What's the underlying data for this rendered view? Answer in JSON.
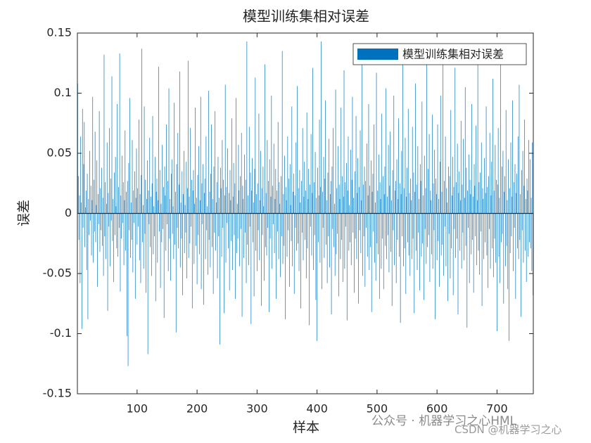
{
  "chart_data": {
    "type": "bar",
    "title": "模型训练集相对误差",
    "xlabel": "样本",
    "ylabel": "误差",
    "xlim": [
      0.5,
      760.5
    ],
    "xticks": [
      100,
      200,
      300,
      400,
      500,
      600,
      700
    ],
    "ylim": [
      -0.15,
      0.15
    ],
    "yticks": [
      -0.15,
      -0.1,
      -0.05,
      0,
      0.05,
      0.1,
      0.15
    ],
    "grid": false,
    "legend": "northeast",
    "series": [
      {
        "name": "模型训练集相对误差",
        "color": "#0072bd",
        "values": [
          0.108,
          0.031,
          -0.022,
          0.015,
          -0.058,
          0.064,
          0.009,
          -0.096,
          0.087,
          -0.012,
          0.041,
          0.076,
          -0.028,
          0.005,
          0.019,
          -0.047,
          0.033,
          -0.088,
          0.012,
          -0.018,
          0.052,
          -0.006,
          0.023,
          -0.035,
          0.011,
          0.097,
          -0.041,
          0.028,
          -0.015,
          0.068,
          -0.024,
          0.007,
          0.044,
          -0.061,
          0.016,
          -0.009,
          0.085,
          -0.032,
          0.021,
          -0.014,
          0.038,
          -0.027,
          0.013,
          -0.052,
          0.132,
          -0.019,
          0.026,
          -0.038,
          0.008,
          0.059,
          -0.081,
          0.017,
          -0.011,
          0.071,
          -0.044,
          0.029,
          -0.006,
          0.114,
          -0.023,
          0.012,
          -0.057,
          0.034,
          -0.018,
          0.047,
          0.006,
          -0.029,
          0.091,
          -0.036,
          0.022,
          -0.012,
          0.133,
          -0.065,
          0.015,
          -0.021,
          0.048,
          -0.008,
          0.026,
          -0.043,
          0.011,
          0.069,
          -0.031,
          0.018,
          -0.102,
          0.027,
          -0.127,
          0.042,
          -0.014,
          0.096,
          -0.037,
          0.009,
          -0.022,
          0.061,
          -0.049,
          0.019,
          -0.008,
          0.035,
          -0.071,
          0.013,
          0.054,
          -0.026,
          0.021,
          -0.011,
          0.078,
          -0.039,
          0.016,
          -0.058,
          0.032,
          0.137,
          -0.024,
          0.007,
          -0.046,
          0.089,
          -0.017,
          0.028,
          -0.066,
          0.012,
          0.044,
          -0.117,
          0.019,
          -0.009,
          0.063,
          -0.028,
          0.014,
          -0.052,
          0.025,
          0.081,
          -0.034,
          0.006,
          -0.019,
          0.047,
          -0.073,
          0.018,
          0.029,
          -0.041,
          0.011,
          0.122,
          -0.015,
          0.036,
          -0.062,
          0.008,
          -0.024,
          0.057,
          -0.013,
          0.022,
          -0.087,
          0.039,
          0.015,
          -0.031,
          0.074,
          -0.009,
          0.027,
          -0.048,
          0.104,
          -0.021,
          0.012,
          -0.056,
          0.033,
          0.045,
          -0.017,
          0.006,
          -0.038,
          0.092,
          -0.026,
          0.018,
          -0.099,
          0.041,
          -0.012,
          0.067,
          -0.029,
          0.024,
          0.118,
          -0.045,
          0.009,
          -0.021,
          0.035,
          -0.068,
          0.016,
          0.052,
          -0.033,
          0.007,
          -0.016,
          0.043,
          -0.054,
          0.021,
          0.127,
          -0.037,
          0.014,
          -0.025,
          0.071,
          -0.011,
          0.028,
          -0.079,
          0.019,
          0.036,
          -0.042,
          0.008,
          0.088,
          -0.027,
          0.013,
          -0.059,
          0.032,
          -0.018,
          0.056,
          -0.034,
          0.011,
          0.097,
          -0.063,
          0.025,
          -0.009,
          0.041,
          -0.076,
          0.017,
          0.029,
          -0.038,
          0.064,
          -0.014,
          0.006,
          -0.051,
          0.102,
          -0.022,
          0.018,
          -0.045,
          0.033,
          0.074,
          -0.028,
          0.012,
          -0.067,
          0.039,
          -0.016,
          0.085,
          -0.031,
          0.009,
          0.026,
          -0.054,
          0.047,
          -0.019,
          0.013,
          -0.109,
          0.038,
          0.021,
          -0.036,
          0.061,
          -0.012,
          0.028,
          -0.083,
          0.015,
          0.107,
          -0.041,
          0.022,
          -0.008,
          0.054,
          -0.029,
          0.017,
          -0.064,
          0.036,
          0.011,
          -0.023,
          0.079,
          -0.047,
          0.014,
          0.042,
          -0.018,
          0.025,
          -0.071,
          0.096,
          -0.033,
          0.008,
          -0.021,
          0.057,
          0.019,
          -0.044,
          0.031,
          -0.013,
          0.067,
          -0.086,
          0.023,
          0.012,
          -0.037,
          0.049,
          -0.016,
          0.028,
          -0.058,
          0.143,
          -0.026,
          0.015,
          -0.043,
          0.072,
          -0.011,
          0.034,
          -0.092,
          0.019,
          0.046,
          -0.024,
          0.009,
          -0.069,
          0.037,
          0.113,
          -0.031,
          0.016,
          -0.048,
          0.025,
          -0.014,
          0.083,
          -0.039,
          0.011,
          0.052,
          -0.077,
          0.021,
          -0.018,
          0.039,
          0.006,
          -0.056,
          0.124,
          -0.028,
          0.017,
          -0.035,
          0.061,
          -0.012,
          0.027,
          -0.082,
          0.045,
          -0.021,
          0.014,
          0.098,
          -0.046,
          0.023,
          -0.009,
          0.058,
          -0.033,
          0.012,
          0.037,
          -0.071,
          0.019,
          -0.015,
          0.076,
          -0.038,
          0.026,
          0.008,
          -0.053,
          0.031,
          -0.019,
          0.135,
          -0.042,
          0.016,
          -0.027,
          0.048,
          -0.088,
          0.022,
          0.011,
          -0.036,
          0.064,
          -0.014,
          0.029,
          -0.061,
          0.041,
          0.007,
          -0.023,
          0.089,
          -0.044,
          0.018,
          0.033,
          -0.067,
          0.015,
          -0.012,
          0.059,
          -0.031,
          0.106,
          -0.025,
          0.021,
          -0.048,
          0.036,
          0.009,
          -0.079,
          0.027,
          -0.016,
          0.071,
          -0.039,
          0.014,
          0.043,
          -0.022,
          0.019,
          -0.054,
          0.084,
          -0.029,
          0.012,
          0.037,
          -0.093,
          0.024,
          -0.011,
          0.066,
          -0.035,
          0.017,
          0.121,
          -0.047,
          0.026,
          -0.018,
          0.051,
          -0.072,
          0.013,
          -0.106,
          0.038,
          -0.024,
          0.015,
          0.078,
          -0.041,
          0.022,
          0.143,
          -0.063,
          0.018,
          -0.012,
          0.047,
          -0.037,
          0.029,
          0.094,
          -0.026,
          0.011,
          -0.058,
          0.034,
          -0.019,
          0.062,
          -0.045,
          0.016,
          0.027,
          -0.084,
          0.039,
          -0.013,
          0.071,
          -0.028,
          0.008,
          -0.052,
          0.103,
          -0.034,
          0.021,
          -0.017,
          0.056,
          -0.069,
          0.024,
          0.012,
          -0.038,
          0.088,
          -0.022,
          0.031,
          -0.057,
          0.014,
          0.119,
          -0.046,
          0.026,
          -0.011,
          0.042,
          -0.089,
          0.019,
          0.064,
          -0.031,
          0.007,
          -0.024,
          0.053,
          -0.043,
          0.028,
          0.097,
          -0.016,
          0.013,
          -0.066,
          0.035,
          -0.021,
          0.081,
          -0.038,
          0.017,
          0.046,
          -0.075,
          0.022,
          -0.014,
          0.069,
          -0.033,
          0.011,
          0.128,
          -0.052,
          0.024,
          -0.019,
          0.039,
          -0.061,
          0.027,
          -0.012,
          0.058,
          -0.036,
          0.015,
          0.091,
          -0.047,
          0.023,
          -0.028,
          0.044,
          -0.082,
          0.018,
          0.033,
          -0.015,
          0.074,
          -0.041,
          0.009,
          -0.056,
          0.117,
          -0.025,
          0.019,
          -0.034,
          0.049,
          -0.071,
          0.026,
          0.012,
          -0.046,
          0.083,
          -0.021,
          0.031,
          -0.063,
          0.016,
          0.039,
          -0.027,
          0.104,
          -0.038,
          0.014,
          -0.018,
          0.057,
          -0.049,
          0.023,
          0.068,
          -0.032,
          0.011,
          -0.077,
          0.036,
          -0.014,
          0.098,
          -0.043,
          0.019,
          0.027,
          -0.058,
          0.045,
          -0.022,
          0.012,
          0.079,
          -0.036,
          0.025,
          -0.091,
          0.016,
          0.052,
          -0.019,
          0.134,
          -0.044,
          0.021,
          -0.029,
          0.063,
          -0.067,
          0.014,
          0.038,
          -0.024,
          0.087,
          -0.035,
          0.017,
          -0.052,
          0.029,
          0.011,
          -0.038,
          0.072,
          -0.021,
          0.034,
          -0.083,
          0.018,
          0.108,
          -0.031,
          0.024,
          -0.047,
          0.056,
          -0.016,
          0.012,
          -0.064,
          0.041,
          0.027,
          -0.036,
          0.093,
          -0.025,
          0.015,
          -0.072,
          0.048,
          -0.013,
          0.021,
          -0.042,
          0.131,
          -0.028,
          0.037,
          -0.018,
          0.066,
          -0.057,
          0.019,
          0.011,
          -0.034,
          0.082,
          -0.046,
          0.025,
          -0.014,
          0.053,
          -0.088,
          0.029,
          0.016,
          -0.039,
          0.074,
          -0.023,
          0.012,
          -0.061,
          0.043,
          0.098,
          -0.035,
          0.018,
          -0.026,
          0.136,
          -0.052,
          0.027,
          -0.011,
          0.064,
          -0.044,
          0.021,
          0.009,
          -0.073,
          0.039,
          -0.017,
          0.031,
          -0.054,
          0.086,
          -0.029,
          0.015,
          0.047,
          -0.068,
          0.022,
          -0.013,
          0.121,
          -0.037,
          0.026,
          -0.021,
          0.058,
          -0.084,
          0.017,
          0.035,
          -0.031,
          0.011,
          0.077,
          -0.046,
          0.024,
          -0.016,
          0.062,
          -0.039,
          0.013,
          0.105,
          -0.027,
          0.038,
          -0.095,
          0.019,
          -0.012,
          0.049,
          -0.058,
          0.028,
          0.016,
          -0.034,
          0.091,
          -0.022,
          0.014,
          -0.066,
          0.041,
          0.023,
          -0.019,
          0.073,
          -0.043,
          0.011,
          0.128,
          -0.031,
          0.026,
          -0.051,
          0.034,
          -0.015,
          0.059,
          -0.077,
          0.021,
          0.012,
          -0.038,
          0.046,
          -0.024,
          0.017,
          0.089,
          -0.035,
          0.022,
          -0.062,
          0.031,
          -0.013,
          0.067,
          -0.046,
          0.015,
          0.043,
          -0.029,
          0.112,
          -0.053,
          0.019,
          -0.021,
          0.057,
          -0.041,
          0.028,
          -0.098,
          0.024,
          0.071,
          -0.036,
          0.013,
          -0.058,
          0.132,
          -0.024,
          0.039,
          -0.017,
          0.052,
          -0.075,
          0.018,
          0.031,
          -0.044,
          0.086,
          -0.027,
          0.011,
          -0.063,
          0.045,
          -0.106,
          0.021,
          -0.033,
          0.059,
          -0.019,
          0.014,
          0.094,
          -0.048,
          0.026,
          -0.012,
          0.041,
          -0.071,
          0.017,
          0.033,
          -0.029,
          0.064,
          -0.038,
          0.107,
          -0.022,
          0.016,
          -0.086,
          0.036,
          -0.014,
          0.052,
          -0.041,
          0.023,
          0.078,
          -0.031,
          0.012,
          -0.057,
          0.029,
          0.019,
          -0.036,
          0.061,
          -0.024,
          0.045,
          -0.029,
          0.013,
          -0.048,
          0.059,
          -0.068
        ]
      }
    ],
    "watermarks": [
      "公众号 · 机器学习之心HML",
      "CSDN @机器学习之心"
    ]
  }
}
